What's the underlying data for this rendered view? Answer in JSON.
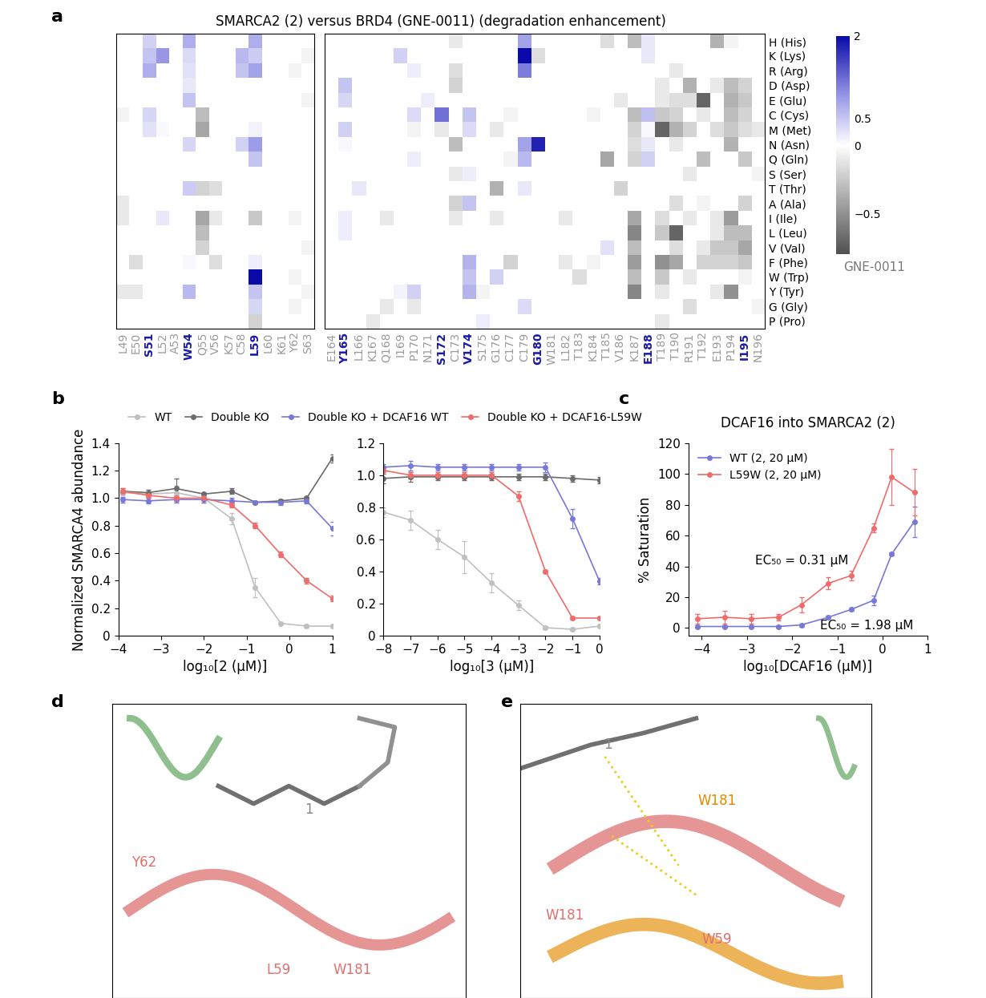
{
  "panel_labels": [
    "a",
    "b",
    "c",
    "d",
    "e"
  ],
  "chart_data": [
    {
      "type": "heatmap",
      "title": "SMARCA2 (2) versus BRD4 (GNE-0011) (degradation enhancement)",
      "rows": [
        "H (His)",
        "K (Lys)",
        "R (Arg)",
        "D (Asp)",
        "E (Glu)",
        "C (Cys)",
        "M (Met)",
        "N (Asn)",
        "Q (Gln)",
        "S (Ser)",
        "T (Thr)",
        "A (Ala)",
        "I (Ile)",
        "L (Leu)",
        "V (Val)",
        "F (Phe)",
        "W (Trp)",
        "Y (Tyr)",
        "G (Gly)",
        "P (Pro)"
      ],
      "panels": [
        {
          "x": [
            "L49",
            "E50",
            "S51",
            "L52",
            "A53",
            "W54",
            "Q55",
            "V56",
            "K57",
            "C58",
            "L59",
            "L60",
            "K61",
            "Y62",
            "S63"
          ]
        },
        {
          "x": [
            "E164",
            "Y165",
            "L166",
            "K167",
            "Q168",
            "I169",
            "P170",
            "N171",
            "S172",
            "C173",
            "V174",
            "S175",
            "G176",
            "C177",
            "C179",
            "G180",
            "W181",
            "L182",
            "T183",
            "K184",
            "T185",
            "V186",
            "K187",
            "E188",
            "T189",
            "T190",
            "R191",
            "T192",
            "E193",
            "P194",
            "I195",
            "N196"
          ]
        }
      ],
      "highlighted": [
        "S51",
        "W54",
        "L59",
        "Y165",
        "S172",
        "V174",
        "G180",
        "E188",
        "I195"
      ],
      "cells": {
        "L49": {
          "C (Cys)": -0.05,
          "A (Ala)": -0.1,
          "I (Ile)": -0.1,
          "Y (Tyr)": -0.1
        },
        "E50": {
          "F (Phe)": -0.15,
          "Y (Tyr)": -0.1
        },
        "S51": {
          "H (His)": 0.4,
          "K (Lys)": 0.5,
          "R (Arg)": 0.7,
          "C (Cys)": 0.35,
          "M (Met)": 0.25
        },
        "L52": {
          "K (Lys)": 0.9,
          "M (Met)": 0.05,
          "I (Ile)": 0.2
        },
        "W54": {
          "H (His)": 0.7,
          "K (Lys)": 0.3,
          "R (Arg)": 0.25,
          "D (Asp)": 0.2,
          "E (Glu)": 0.5,
          "N (Asn)": 0.35,
          "T (Thr)": 0.45,
          "Y (Tyr)": 0.6,
          "F (Phe)": 0.05
        },
        "Q55": {
          "C (Cys)": -0.3,
          "M (Met)": -0.4,
          "T (Thr)": -0.2,
          "I (Ile)": -0.4,
          "L (Leu)": -0.3,
          "V (Val)": -0.2
        },
        "V56": {
          "T (Thr)": -0.15,
          "F (Phe)": -0.15,
          "I (Ile)": -0.1
        },
        "C58": {
          "K (Lys)": 0.6,
          "R (Arg)": 0.5,
          "N (Asn)": 0.4
        },
        "L59": {
          "H (His)": 0.7,
          "K (Lys)": 0.45,
          "R (Arg)": 0.8,
          "M (Met)": 0.1,
          "N (Asn)": 0.85,
          "Q (Gln)": 0.5,
          "I (Ile)": -0.25,
          "F (Phe)": 0.15,
          "W (Trp)": 2.0,
          "Y (Tyr)": 0.5,
          "G (Gly)": 0.35,
          "P (Pro)": -0.2
        },
        "Y62": {
          "R (Arg)": -0.05,
          "I (Ile)": -0.05,
          "W (Trp)": -0.05,
          "G (Gly)": -0.05
        },
        "S63": {
          "K (Lys)": -0.05,
          "E (Glu)": -0.05,
          "V (Val)": -0.05,
          "Y (Tyr)": -0.05
        },
        "Y165": {
          "D (Asp)": 0.5,
          "E (Glu)": 0.35,
          "M (Met)": 0.4,
          "N (Asn)": 0.05,
          "I (Ile)": 0.15,
          "L (Leu)": 0.15
        },
        "L166": {
          "T (Thr)": 0.2
        },
        "K167": {
          "P (Pro)": -0.1
        },
        "Q168": {
          "I (Ile)": -0.1,
          "G (Gly)": -0.1
        },
        "I169": {
          "K (Lys)": 0.4,
          "Y (Tyr)": 0.1
        },
        "P170": {
          "R (Arg)": 0.15,
          "C (Cys)": 0.3,
          "M (Met)": -0.05,
          "Q (Gln)": 0.15,
          "Y (Tyr)": 0.4,
          "G (Gly)": -0.1
        },
        "N171": {
          "E (Glu)": 0.15
        },
        "S172": {
          "C (Cys)": 1.2,
          "M (Met)": -0.1
        },
        "C173": {
          "H (His)": -0.1,
          "R (Arg)": -0.15,
          "D (Asp)": -0.2,
          "N (Asn)": -0.3,
          "S (Ser)": -0.1,
          "A (Ala)": -0.2,
          "I (Ile)": -0.1
        },
        "V174": {
          "C (Cys)": 0.5,
          "M (Met)": 0.3,
          "S (Ser)": 0.15,
          "A (Ala)": 0.5,
          "F (Phe)": 0.65,
          "W (Trp)": 0.5,
          "Y (Tyr)": 0.65
        },
        "S175": {
          "Y (Tyr)": -0.05,
          "P (Pro)": 0.15
        },
        "G176": {
          "M (Met)": -0.1,
          "T (Thr)": -0.35,
          "I (Ile)": -0.1,
          "W (Trp)": 0.4
        },
        "C177": {
          "C (Cys)": -0.05,
          "Q (Gln)": -0.05,
          "F (Phe)": -0.2
        },
        "C179": {
          "H (His)": 0.8,
          "K (Lys)": 2.0,
          "R (Arg)": 1.1,
          "N (Asn)": 0.8,
          "Q (Gln)": 0.6,
          "T (Thr)": 0.2,
          "G (Gly)": 0.3
        },
        "G180": {
          "K (Lys)": -0.15,
          "N (Asn)": 1.8
        },
        "L182": {
          "I (Ile)": -0.1,
          "F (Phe)": -0.1
        },
        "T183": {
          "W (Trp)": -0.15
        },
        "K184": {
          "C (Cys)": -0.05,
          "F (Phe)": -0.05
        },
        "T185": {
          "H (His)": -0.15,
          "Q (Gln)": -0.4,
          "V (Val)": 0.25
        },
        "V186": {
          "E (Glu)": -0.1,
          "T (Thr)": -0.2
        },
        "K187": {
          "H (His)": -0.3,
          "C (Cys)": -0.3,
          "M (Met)": -0.2,
          "N (Asn)": -0.15,
          "Q (Gln)": -0.2,
          "I (Ile)": -0.4,
          "L (Leu)": -0.55,
          "V (Val)": -0.3,
          "F (Phe)": -0.45,
          "W (Trp)": -0.3,
          "Y (Tyr)": -0.55
        },
        "E188": {
          "H (His)": 0.2,
          "K (Lys)": 0.2,
          "C (Cys)": 0.55,
          "M (Met)": 0.05,
          "N (Asn)": 0.2,
          "Q (Gln)": 0.4
        },
        "T189": {
          "D (Asp)": -0.1,
          "E (Glu)": -0.1,
          "C (Cys)": -0.25,
          "M (Met)": -0.7,
          "I (Ile)": -0.15,
          "L (Leu)": -0.25,
          "F (Phe)": -0.5,
          "W (Trp)": -0.25,
          "Y (Tyr)": -0.1,
          "P (Pro)": -0.1
        },
        "T190": {
          "R (Arg)": -0.1,
          "E (Glu)": -0.15,
          "C (Cys)": -0.2,
          "M (Met)": -0.35,
          "N (Asn)": -0.1,
          "A (Ala)": -0.15,
          "L (Leu)": -0.7,
          "V (Val)": -0.15,
          "F (Phe)": -0.4
        },
        "R191": {
          "D (Asp)": -0.35,
          "E (Glu)": -0.15,
          "M (Met)": -0.2,
          "S (Ser)": -0.1,
          "I (Ile)": -0.1,
          "W (Trp)": -0.1,
          "G (Gly)": -0.15
        },
        "T192": {
          "E (Glu)": -0.7,
          "C (Cys)": -0.1,
          "Q (Gln)": -0.3,
          "A (Ala)": -0.05,
          "V (Val)": -0.1,
          "F (Phe)": -0.2
        },
        "E193": {
          "H (His)": -0.35,
          "D (Asp)": -0.1,
          "M (Met)": -0.15,
          "I (Ile)": -0.1,
          "L (Leu)": -0.1,
          "V (Val)": -0.25,
          "F (Phe)": -0.2,
          "Y (Tyr)": -0.1
        },
        "P194": {
          "H (His)": -0.05,
          "D (Asp)": -0.3,
          "E (Glu)": -0.35,
          "C (Cys)": -0.3,
          "M (Met)": -0.25,
          "N (Asn)": -0.35,
          "I (Ile)": -0.45,
          "L (Leu)": -0.3,
          "V (Val)": -0.25,
          "F (Phe)": -0.2,
          "Y (Tyr)": -0.5
        },
        "I195": {
          "D (Asp)": -0.2,
          "E (Glu)": -0.25,
          "C (Cys)": -0.2,
          "M (Met)": -0.15,
          "Q (Gln)": -0.25,
          "A (Ala)": -0.2,
          "L (Leu)": -0.3,
          "V (Val)": -0.4,
          "F (Phe)": -0.25,
          "W (Trp)": -0.05
        },
        "N196": {
          "M (Met)": -0.1,
          "S (Ser)": -0.05,
          "G (Gly)": -0.05
        }
      },
      "colorbar_range": [
        -0.8,
        2
      ],
      "colorbar_ticks": [
        2,
        0.5,
        0,
        {
          "value": -0.5,
          "label": "−0.5"
        }
      ],
      "colorbar_label": "GNE-0011"
    },
    {
      "type": "line",
      "xlabel": "log₁₀[2 (µM)]",
      "ylabel": "Normalized SMARCA4 abundance",
      "x": [
        -3.9,
        -3.3,
        -2.65,
        -2.0,
        -1.35,
        -0.8,
        -0.2,
        0.4,
        1.0
      ],
      "xlim": [
        -4,
        1
      ],
      "xticks": [
        {
          "value": -4,
          "label": "−4"
        },
        {
          "value": -3,
          "label": "−3"
        },
        {
          "value": -2,
          "label": "−2"
        },
        {
          "value": -1,
          "label": "−1"
        },
        0,
        1
      ],
      "ylim": [
        0,
        1.4
      ],
      "yticks": [
        0,
        0.2,
        0.4,
        0.6,
        0.8,
        1.0,
        1.2,
        1.4
      ],
      "legend": "above",
      "series": [
        {
          "name": "WT",
          "color": "#c0c0c0",
          "marker": "o",
          "values": [
            1.04,
            1.03,
            1.04,
            1.0,
            0.85,
            0.35,
            0.09,
            0.07,
            0.07
          ],
          "errors": [
            0.02,
            0.03,
            0.05,
            0.03,
            0.04,
            0.07,
            0.01,
            0.01,
            0.01
          ]
        },
        {
          "name": "Double KO",
          "color": "#6b6b6b",
          "marker": "o",
          "values": [
            1.05,
            1.04,
            1.07,
            1.03,
            1.05,
            0.97,
            0.98,
            1.0,
            1.29
          ],
          "errors": [
            0.02,
            0.02,
            0.07,
            0.01,
            0.02,
            0.01,
            0.01,
            0.01,
            0.03
          ]
        },
        {
          "name": "Double KO + DCAF16 WT",
          "color": "#7878d8",
          "marker": "o",
          "values": [
            0.99,
            0.98,
            0.99,
            0.99,
            0.98,
            0.97,
            0.97,
            0.98,
            0.78
          ],
          "errors": [
            0.02,
            0.02,
            0.02,
            0.02,
            0.02,
            0.01,
            0.02,
            0.02,
            0.05
          ]
        },
        {
          "name": "Double KO + DCAF16-L59W",
          "color": "#f06b6b",
          "marker": "o",
          "values": [
            1.05,
            1.02,
            1.0,
            1.0,
            0.95,
            0.8,
            0.59,
            0.4,
            0.27
          ],
          "errors": [
            0.02,
            0.02,
            0.02,
            0.01,
            0.02,
            0.02,
            0.02,
            0.02,
            0.02
          ]
        }
      ]
    },
    {
      "type": "line",
      "xlabel": "log₁₀[3 (µM)]",
      "x": [
        -8,
        -7,
        -6,
        -5,
        -4,
        -3,
        -2,
        -1,
        0
      ],
      "xlim": [
        -8,
        0
      ],
      "xticks": [
        {
          "value": -8,
          "label": "−8"
        },
        {
          "value": -7,
          "label": "−7"
        },
        {
          "value": -6,
          "label": "−6"
        },
        {
          "value": -5,
          "label": "−5"
        },
        {
          "value": -4,
          "label": "−4"
        },
        {
          "value": -3,
          "label": "−3"
        },
        {
          "value": -2,
          "label": "−2"
        },
        {
          "value": -1,
          "label": "−1"
        },
        0
      ],
      "ylim": [
        0,
        1.2
      ],
      "yticks": [
        0,
        0.2,
        0.4,
        0.6,
        0.8,
        1.0,
        1.2
      ],
      "series": [
        {
          "name": "WT",
          "color": "#c0c0c0",
          "marker": "o",
          "values": [
            0.77,
            0.72,
            0.6,
            0.49,
            0.33,
            0.19,
            0.05,
            0.04,
            0.06
          ],
          "errors": [
            0.03,
            0.06,
            0.06,
            0.1,
            0.06,
            0.03,
            0.01,
            0.01,
            0.01
          ]
        },
        {
          "name": "Double KO",
          "color": "#6b6b6b",
          "marker": "o",
          "values": [
            0.98,
            0.99,
            0.99,
            0.99,
            0.99,
            0.99,
            0.99,
            0.98,
            0.97
          ],
          "errors": [
            0.03,
            0.03,
            0.02,
            0.02,
            0.02,
            0.02,
            0.02,
            0.02,
            0.02
          ]
        },
        {
          "name": "Double KO + DCAF16 WT",
          "color": "#7878d8",
          "marker": "o",
          "values": [
            1.05,
            1.06,
            1.05,
            1.05,
            1.05,
            1.05,
            1.05,
            0.73,
            0.34
          ],
          "errors": [
            0.02,
            0.03,
            0.02,
            0.02,
            0.02,
            0.02,
            0.03,
            0.06,
            0.02
          ]
        },
        {
          "name": "Double KO + DCAF16-L59W",
          "color": "#f06b6b",
          "marker": "o",
          "values": [
            1.03,
            1.0,
            1.0,
            1.0,
            1.0,
            0.87,
            0.4,
            0.11,
            0.11
          ],
          "errors": [
            0.02,
            0.02,
            0.02,
            0.02,
            0.02,
            0.03,
            0.01,
            0.01,
            0.01
          ]
        }
      ]
    },
    {
      "type": "line",
      "title": "DCAF16 into SMARCA2 (2)",
      "xlabel": "log₁₀[DCAF16 (µM)]",
      "ylabel": "% Saturation",
      "x": [
        -4.1,
        -3.5,
        -2.9,
        -2.3,
        -1.8,
        -1.2,
        -0.7,
        -0.2,
        0.2,
        0.7
      ],
      "xlim": [
        -4.3,
        1
      ],
      "xticks": [
        {
          "value": -4,
          "label": "−4"
        },
        {
          "value": -3,
          "label": "−3"
        },
        {
          "value": -2,
          "label": "−2"
        },
        {
          "value": -1,
          "label": "−1"
        },
        0,
        1
      ],
      "ylim": [
        -5,
        120
      ],
      "yticks": [
        0,
        20,
        40,
        60,
        80,
        100,
        120
      ],
      "legend": "upper left",
      "annotations": [
        "EC₅₀ = 0.31 µM",
        "EC₅₀ = 1.98 µM"
      ],
      "series": [
        {
          "name": "WT (2, 20 µM)",
          "color": "#7878d8",
          "marker": "o",
          "values": [
            1,
            1,
            1,
            1,
            2,
            7,
            12,
            18,
            48,
            69
          ],
          "errors": [
            1,
            1,
            1,
            1,
            1,
            1,
            1,
            3,
            1,
            10
          ]
        },
        {
          "name": "L59W (2, 20 µM)",
          "color": "#f06b6b",
          "marker": "o",
          "values": [
            6,
            7,
            6,
            7,
            15,
            29,
            34,
            65,
            98,
            88
          ],
          "errors": [
            3,
            4,
            3,
            2,
            5,
            4,
            3,
            3,
            18,
            15
          ]
        }
      ]
    }
  ],
  "structures": [
    {
      "panel": "d",
      "labels": [
        "1",
        "Y62",
        "L59",
        "W181"
      ]
    },
    {
      "panel": "e",
      "labels": [
        "1",
        "W181",
        "W181",
        "W59"
      ]
    }
  ]
}
